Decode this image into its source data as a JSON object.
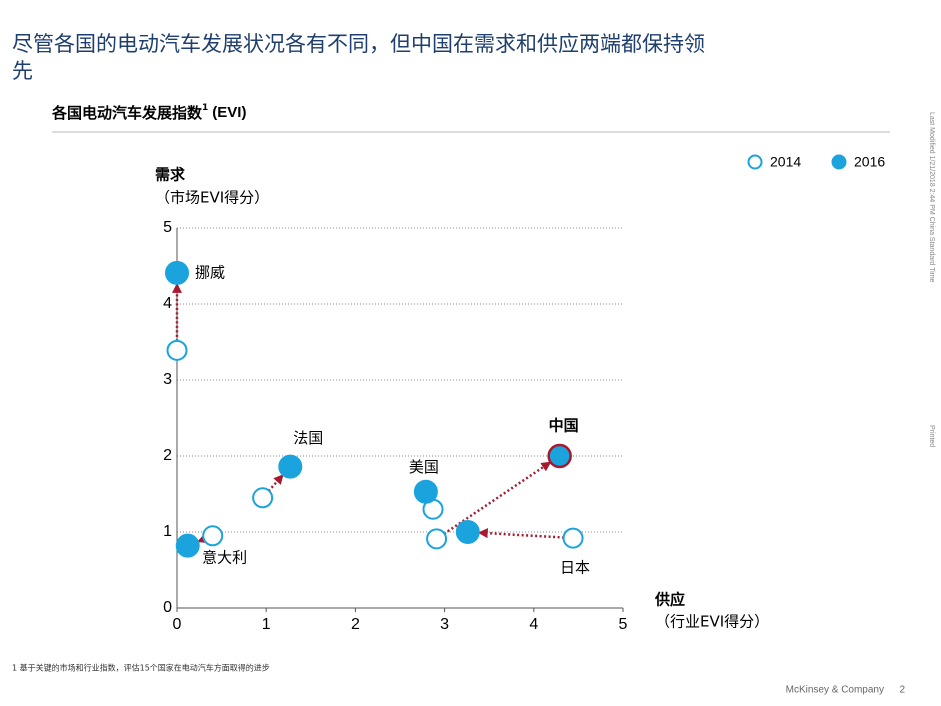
{
  "chart_data": {
    "type": "scatter",
    "title": [
      "尽管各国的电动汽车发展状况各有不同，但中国在需求和供应两端都保持领",
      "先"
    ],
    "subtitle": "各国电动汽车发展指数",
    "subtitle_note": "1",
    "subtitle_suffix": "(EVI)",
    "ylabel": "需求",
    "ylabel_sub": "（市场EVI得分）",
    "xlabel": "供应",
    "xlabel_sub": "（行业EVI得分）",
    "footnote": "1 基于关键的市场和行业指数，评估15个国家在电动汽车方面取得的进步",
    "footer": "McKinsey & Company",
    "page": "2",
    "side_notes": [
      "Last Modified 1/21/2018 2:44 PM China Standard Time",
      "Printed"
    ],
    "categories": [
      "挪威",
      "意大利",
      "法国",
      "美国",
      "中国",
      "日本"
    ],
    "series": [
      {
        "name": "2014",
        "color": "#1aa3dd",
        "hollow": true,
        "x": [
          0.0,
          0.4,
          0.96,
          2.87,
          2.91,
          4.44
        ],
        "values": [
          3.39,
          0.95,
          1.45,
          1.3,
          0.91,
          0.92
        ]
      },
      {
        "name": "2016",
        "color": "#1aa3dd",
        "hollow": false,
        "x": [
          0.0,
          0.12,
          1.27,
          2.79,
          4.29,
          3.26
        ],
        "values": [
          4.41,
          0.82,
          1.86,
          1.53,
          2.0,
          1.0
        ]
      }
    ],
    "arrow_color": "#a6192e",
    "xlim": [
      0,
      5
    ],
    "xticks": [
      0,
      1,
      2,
      3,
      4,
      5
    ],
    "ylim": [
      0,
      5
    ],
    "yticks": [
      0,
      1,
      2,
      3,
      4,
      5
    ],
    "grid": true,
    "legend": "top-right"
  }
}
